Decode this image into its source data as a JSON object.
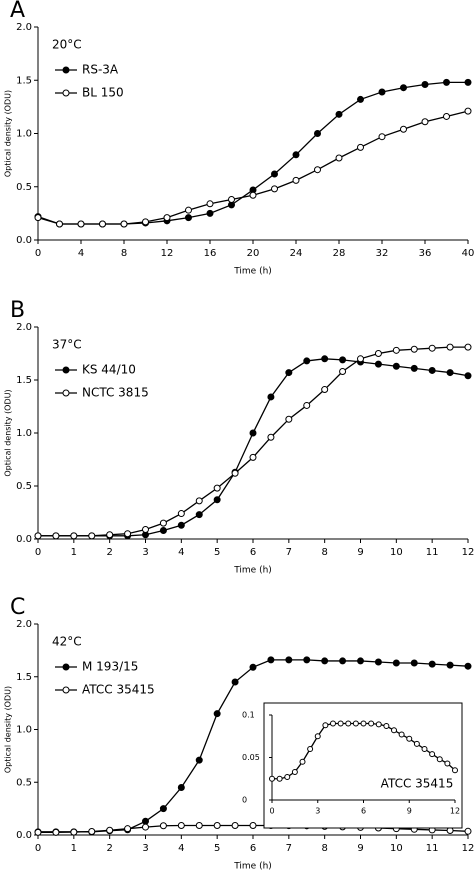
{
  "chart_data": [
    {
      "type": "line",
      "label": "A",
      "annotation": "20°C",
      "xlabel": "Time (h)",
      "ylabel": "Optical density (ODU)",
      "x": [
        0,
        2,
        4,
        6,
        8,
        10,
        12,
        14,
        16,
        18,
        20,
        22,
        24,
        26,
        28,
        30,
        32,
        34,
        36,
        38,
        40
      ],
      "xlim": [
        0,
        40
      ],
      "xticks": [
        0,
        4,
        8,
        12,
        16,
        20,
        24,
        28,
        32,
        36,
        40
      ],
      "ylim": [
        0,
        2
      ],
      "yticks": [
        {
          "value": 0,
          "label": "0.0"
        },
        {
          "value": 0.5,
          "label": "0.5"
        },
        {
          "value": 1,
          "label": "1.0"
        },
        {
          "value": 1.5,
          "label": "1.5"
        },
        {
          "value": 2,
          "label": "2.0"
        }
      ],
      "legend": "upper left",
      "series": [
        {
          "name": "RS-3A",
          "color": "#000000",
          "marker_fill": "#000000",
          "values": [
            0.22,
            0.15,
            0.15,
            0.15,
            0.15,
            0.16,
            0.18,
            0.21,
            0.25,
            0.33,
            0.47,
            0.62,
            0.8,
            1.0,
            1.18,
            1.32,
            1.39,
            1.43,
            1.46,
            1.48,
            1.48
          ]
        },
        {
          "name": "BL 150",
          "color": "#000000",
          "marker_fill": "#ffffff",
          "values": [
            0.21,
            0.15,
            0.15,
            0.15,
            0.15,
            0.17,
            0.21,
            0.28,
            0.34,
            0.38,
            0.42,
            0.48,
            0.56,
            0.66,
            0.77,
            0.87,
            0.97,
            1.04,
            1.11,
            1.16,
            1.21
          ]
        }
      ]
    },
    {
      "type": "line",
      "label": "B",
      "annotation": "37°C",
      "xlabel": "Time (h)",
      "ylabel": "Optical density (ODU)",
      "x": [
        0,
        0.5,
        1,
        1.5,
        2,
        2.5,
        3,
        3.5,
        4,
        4.5,
        5,
        5.5,
        6,
        6.5,
        7,
        7.5,
        8,
        8.5,
        9,
        9.5,
        10,
        10.5,
        11,
        11.5,
        12
      ],
      "xlim": [
        0,
        12
      ],
      "xticks": [
        0,
        1,
        2,
        3,
        4,
        5,
        6,
        7,
        8,
        9,
        10,
        11,
        12
      ],
      "ylim": [
        0,
        2
      ],
      "yticks": [
        {
          "value": 0,
          "label": "0.0"
        },
        {
          "value": 0.5,
          "label": "0.5"
        },
        {
          "value": 1,
          "label": "1.0"
        },
        {
          "value": 1.5,
          "label": "1.5"
        },
        {
          "value": 2,
          "label": "2.0"
        }
      ],
      "legend": "upper left",
      "series": [
        {
          "name": "KS 44/10",
          "color": "#000000",
          "marker_fill": "#000000",
          "values": [
            0.03,
            0.03,
            0.03,
            0.03,
            0.03,
            0.03,
            0.04,
            0.08,
            0.13,
            0.23,
            0.37,
            0.63,
            1.0,
            1.34,
            1.57,
            1.68,
            1.7,
            1.69,
            1.67,
            1.65,
            1.63,
            1.61,
            1.59,
            1.57,
            1.54
          ]
        },
        {
          "name": "NCTC 3815",
          "color": "#000000",
          "marker_fill": "#ffffff",
          "values": [
            0.03,
            0.03,
            0.03,
            0.03,
            0.04,
            0.05,
            0.09,
            0.15,
            0.24,
            0.36,
            0.48,
            0.62,
            0.77,
            0.96,
            1.13,
            1.26,
            1.41,
            1.58,
            1.7,
            1.75,
            1.78,
            1.79,
            1.8,
            1.81,
            1.81
          ]
        }
      ]
    },
    {
      "type": "line",
      "label": "C",
      "annotation": "42°C",
      "xlabel": "Time (h)",
      "ylabel": "Optical density (ODU)",
      "x": [
        0,
        0.5,
        1,
        1.5,
        2,
        2.5,
        3,
        3.5,
        4,
        4.5,
        5,
        5.5,
        6,
        6.5,
        7,
        7.5,
        8,
        8.5,
        9,
        9.5,
        10,
        10.5,
        11,
        11.5,
        12
      ],
      "xlim": [
        0,
        12
      ],
      "xticks": [
        0,
        1,
        2,
        3,
        4,
        5,
        6,
        7,
        8,
        9,
        10,
        11,
        12
      ],
      "ylim": [
        0,
        2
      ],
      "yticks": [
        {
          "value": 0,
          "label": "0.0"
        },
        {
          "value": 0.5,
          "label": "0.5"
        },
        {
          "value": 1,
          "label": "1.0"
        },
        {
          "value": 1.5,
          "label": "1.5"
        },
        {
          "value": 2,
          "label": "2.0"
        }
      ],
      "legend": "upper left",
      "series": [
        {
          "name": "M 193/15",
          "color": "#000000",
          "marker_fill": "#000000",
          "values": [
            0.03,
            0.03,
            0.03,
            0.03,
            0.04,
            0.05,
            0.13,
            0.25,
            0.45,
            0.71,
            1.15,
            1.45,
            1.59,
            1.66,
            1.66,
            1.66,
            1.65,
            1.65,
            1.65,
            1.64,
            1.63,
            1.63,
            1.62,
            1.61,
            1.6
          ]
        },
        {
          "name": "ATCC 35415",
          "color": "#000000",
          "marker_fill": "#ffffff",
          "values": [
            0.025,
            0.025,
            0.027,
            0.033,
            0.045,
            0.06,
            0.075,
            0.088,
            0.09,
            0.09,
            0.09,
            0.09,
            0.09,
            0.09,
            0.089,
            0.087,
            0.082,
            0.077,
            0.072,
            0.066,
            0.06,
            0.054,
            0.048,
            0.043,
            0.035
          ]
        }
      ],
      "inset": {
        "series": 1,
        "xlim": [
          0,
          12
        ],
        "xticks": [
          0,
          3,
          6,
          9,
          12
        ],
        "ylim": [
          0,
          0.1
        ],
        "yticks": [
          0,
          0.05,
          0.1
        ]
      }
    }
  ]
}
